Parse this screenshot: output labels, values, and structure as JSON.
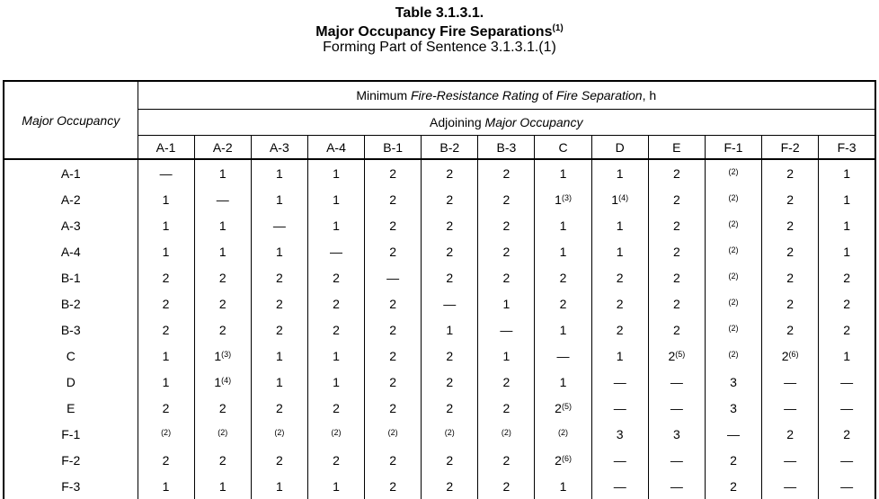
{
  "title": {
    "line1": "Table 3.1.3.1.",
    "line2": "Major Occupancy Fire Separations",
    "line2_sup": "(1)",
    "line3": "Forming Part of Sentence 3.1.3.1.(1)"
  },
  "table": {
    "corner": "Major Occupancy",
    "header1": {
      "p1": "Minimum ",
      "i1": "Fire-Resistance Rating",
      "p2": " of ",
      "i2": "Fire Separation",
      "p3": ", h"
    },
    "header2": {
      "p1": "Adjoining ",
      "i1": "Major Occupancy"
    },
    "columns": [
      "A-1",
      "A-2",
      "A-3",
      "A-4",
      "B-1",
      "B-2",
      "B-3",
      "C",
      "D",
      "E",
      "F-1",
      "F-2",
      "F-3"
    ],
    "rows": [
      {
        "label": "A-1",
        "values": [
          "—",
          "1",
          "1",
          "1",
          "2",
          "2",
          "2",
          "1",
          "1",
          "2",
          "^(2)",
          "2",
          "1"
        ]
      },
      {
        "label": "A-2",
        "values": [
          "1",
          "—",
          "1",
          "1",
          "2",
          "2",
          "2",
          "1^(3)",
          "1^(4)",
          "2",
          "^(2)",
          "2",
          "1"
        ]
      },
      {
        "label": "A-3",
        "values": [
          "1",
          "1",
          "—",
          "1",
          "2",
          "2",
          "2",
          "1",
          "1",
          "2",
          "^(2)",
          "2",
          "1"
        ]
      },
      {
        "label": "A-4",
        "values": [
          "1",
          "1",
          "1",
          "—",
          "2",
          "2",
          "2",
          "1",
          "1",
          "2",
          "^(2)",
          "2",
          "1"
        ]
      },
      {
        "label": "B-1",
        "values": [
          "2",
          "2",
          "2",
          "2",
          "—",
          "2",
          "2",
          "2",
          "2",
          "2",
          "^(2)",
          "2",
          "2"
        ]
      },
      {
        "label": "B-2",
        "values": [
          "2",
          "2",
          "2",
          "2",
          "2",
          "—",
          "1",
          "2",
          "2",
          "2",
          "^(2)",
          "2",
          "2"
        ]
      },
      {
        "label": "B-3",
        "values": [
          "2",
          "2",
          "2",
          "2",
          "2",
          "1",
          "—",
          "1",
          "2",
          "2",
          "^(2)",
          "2",
          "2"
        ]
      },
      {
        "label": "C",
        "values": [
          "1",
          "1^(3)",
          "1",
          "1",
          "2",
          "2",
          "1",
          "—",
          "1",
          "2^(5)",
          "^(2)",
          "2^(6)",
          "1"
        ]
      },
      {
        "label": "D",
        "values": [
          "1",
          "1^(4)",
          "1",
          "1",
          "2",
          "2",
          "2",
          "1",
          "—",
          "—",
          "3",
          "—",
          "—"
        ]
      },
      {
        "label": "E",
        "values": [
          "2",
          "2",
          "2",
          "2",
          "2",
          "2",
          "2",
          "2^(5)",
          "—",
          "—",
          "3",
          "—",
          "—"
        ]
      },
      {
        "label": "F-1",
        "values": [
          "^(2)",
          "^(2)",
          "^(2)",
          "^(2)",
          "^(2)",
          "^(2)",
          "^(2)",
          "^(2)",
          "3",
          "3",
          "—",
          "2",
          "2"
        ]
      },
      {
        "label": "F-2",
        "values": [
          "2",
          "2",
          "2",
          "2",
          "2",
          "2",
          "2",
          "2^(6)",
          "—",
          "—",
          "2",
          "—",
          "—"
        ]
      },
      {
        "label": "F-3",
        "values": [
          "1",
          "1",
          "1",
          "1",
          "2",
          "2",
          "2",
          "1",
          "—",
          "—",
          "2",
          "—",
          "—"
        ]
      }
    ]
  }
}
